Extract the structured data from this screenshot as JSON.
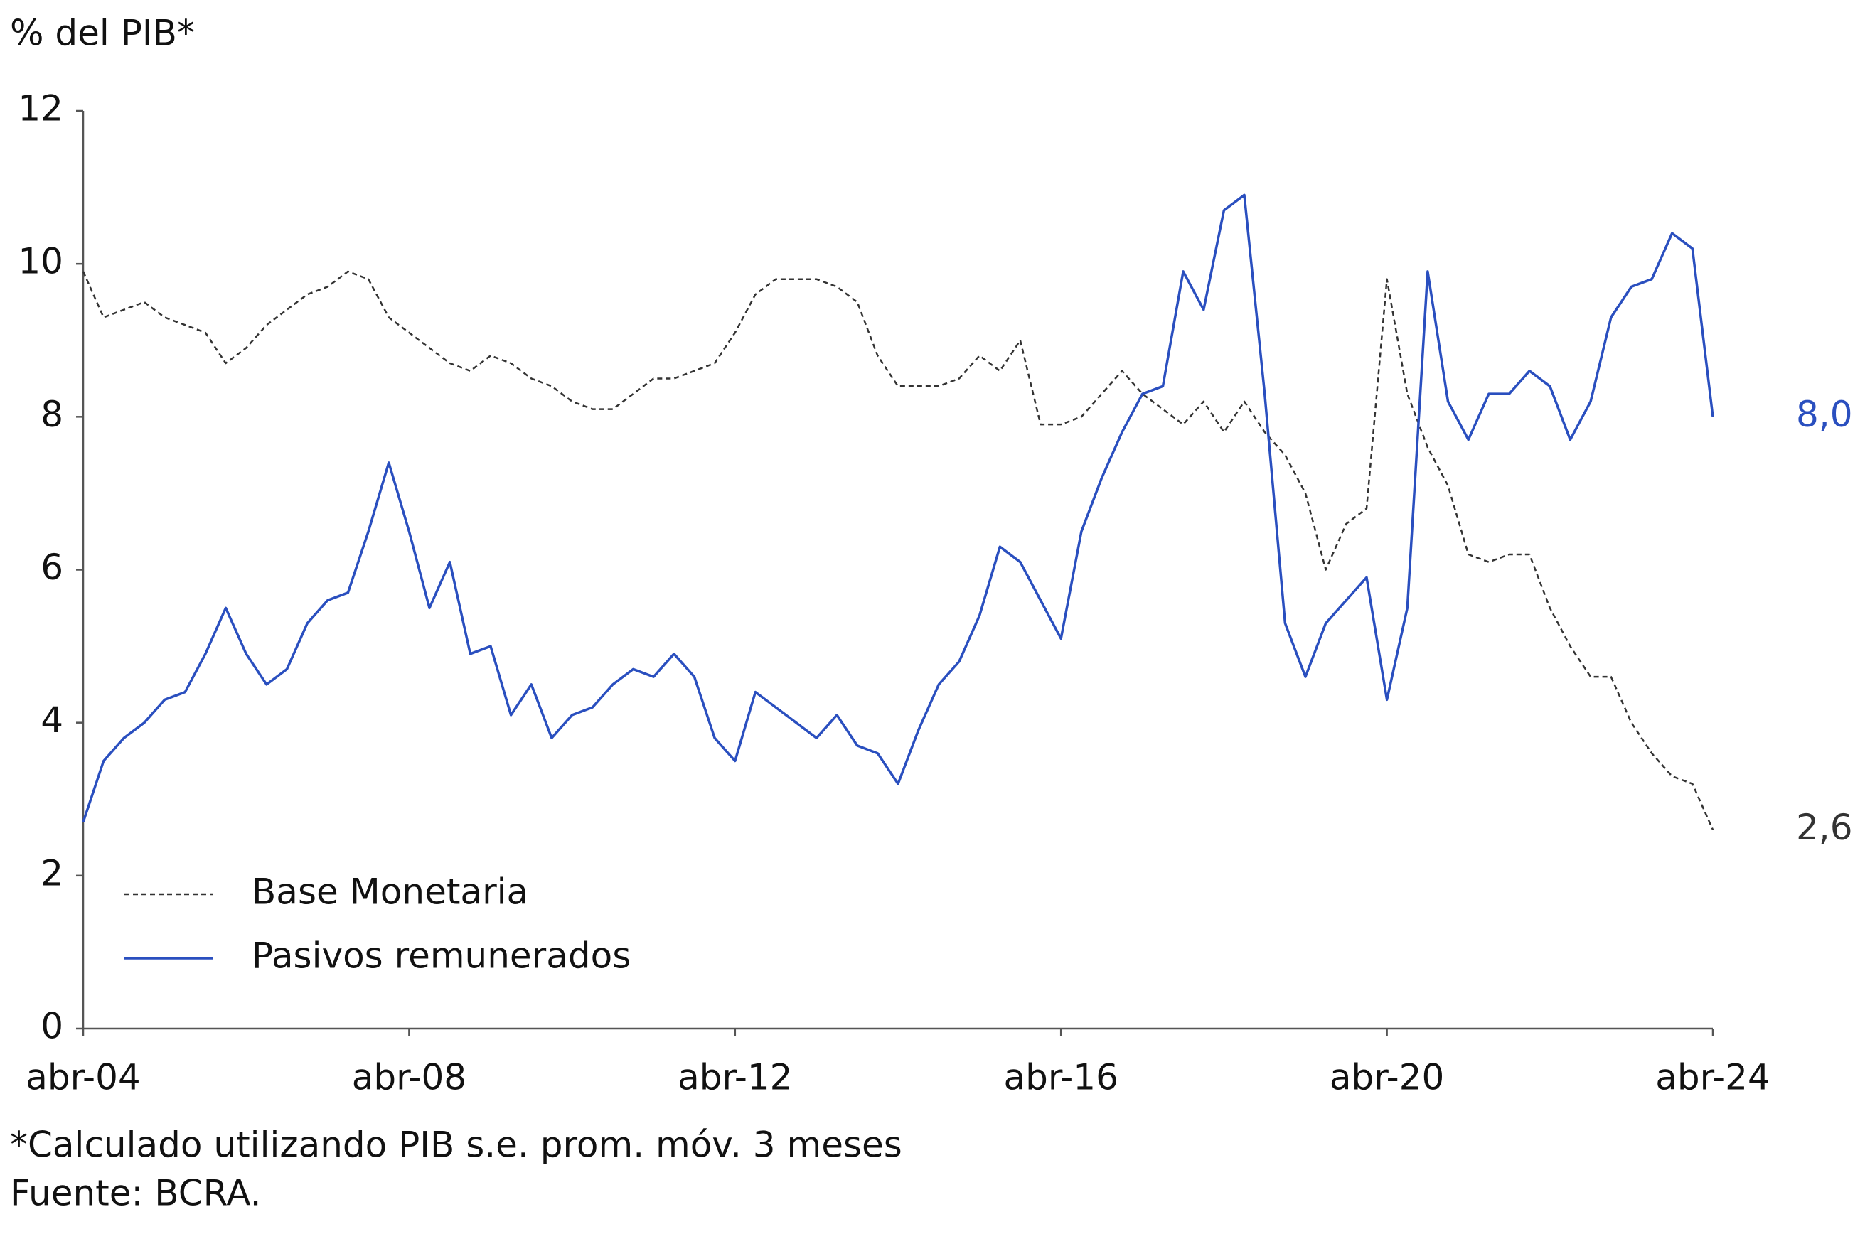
{
  "chart_data": {
    "type": "line",
    "y_label": "% del PIB*",
    "notes": [
      "*Calculado utilizando PIB s.e. prom. móv. 3 meses",
      "Fuente: BCRA."
    ],
    "x": [
      "2004-04",
      "2004-07",
      "2004-10",
      "2005-01",
      "2005-04",
      "2005-07",
      "2005-10",
      "2006-01",
      "2006-04",
      "2006-07",
      "2006-10",
      "2007-01",
      "2007-04",
      "2007-07",
      "2007-10",
      "2008-01",
      "2008-04",
      "2008-07",
      "2008-10",
      "2009-01",
      "2009-04",
      "2009-07",
      "2009-10",
      "2010-01",
      "2010-04",
      "2010-07",
      "2010-10",
      "2011-01",
      "2011-04",
      "2011-07",
      "2011-10",
      "2012-01",
      "2012-04",
      "2012-07",
      "2012-10",
      "2013-01",
      "2013-04",
      "2013-07",
      "2013-10",
      "2014-01",
      "2014-04",
      "2014-07",
      "2014-10",
      "2015-01",
      "2015-04",
      "2015-07",
      "2015-10",
      "2016-01",
      "2016-04",
      "2016-07",
      "2016-10",
      "2017-01",
      "2017-04",
      "2017-07",
      "2017-10",
      "2018-01",
      "2018-04",
      "2018-07",
      "2018-10",
      "2019-01",
      "2019-04",
      "2019-07",
      "2019-10",
      "2020-01",
      "2020-04",
      "2020-07",
      "2020-10",
      "2021-01",
      "2021-04",
      "2021-07",
      "2021-10",
      "2022-01",
      "2022-04",
      "2022-07",
      "2022-10",
      "2023-01",
      "2023-04",
      "2023-07",
      "2023-10",
      "2024-01",
      "2024-04"
    ],
    "xlim": [
      "2004-04",
      "2024-04"
    ],
    "xticks": [
      {
        "value": "2004-04",
        "label": "abr-04"
      },
      {
        "value": "2008-04",
        "label": "abr-08"
      },
      {
        "value": "2012-04",
        "label": "abr-12"
      },
      {
        "value": "2016-04",
        "label": "abr-16"
      },
      {
        "value": "2020-04",
        "label": "abr-20"
      },
      {
        "value": "2024-04",
        "label": "abr-24"
      }
    ],
    "ylim": [
      0,
      12
    ],
    "yticks": [
      0,
      2,
      4,
      6,
      8,
      10,
      12
    ],
    "legend": "lower left",
    "series": [
      {
        "name": "Base Monetaria",
        "color": "#333333",
        "dashed": true,
        "values": [
          9.9,
          9.3,
          9.4,
          9.5,
          9.3,
          9.2,
          9.1,
          8.7,
          8.9,
          9.2,
          9.4,
          9.6,
          9.7,
          9.9,
          9.8,
          9.3,
          9.1,
          8.9,
          8.7,
          8.6,
          8.8,
          8.7,
          8.5,
          8.4,
          8.2,
          8.1,
          8.1,
          8.3,
          8.5,
          8.5,
          8.6,
          8.7,
          9.1,
          9.6,
          9.8,
          9.8,
          9.8,
          9.7,
          9.5,
          8.8,
          8.4,
          8.4,
          8.4,
          8.5,
          8.8,
          8.6,
          9.0,
          7.9,
          7.9,
          8.0,
          8.3,
          8.6,
          8.3,
          8.1,
          7.9,
          8.2,
          7.8,
          8.2,
          7.8,
          7.5,
          7.0,
          6.0,
          6.6,
          6.8,
          9.8,
          8.3,
          7.6,
          7.1,
          6.2,
          6.1,
          6.2,
          6.2,
          5.5,
          5.0,
          4.6,
          4.6,
          4.0,
          3.6,
          3.3,
          3.2,
          2.6
        ],
        "value_labels": [
          null,
          null,
          null,
          null,
          null,
          null,
          null,
          null,
          null,
          null,
          null,
          null,
          null,
          null,
          null,
          null,
          null,
          null,
          null,
          null,
          null,
          null,
          null,
          null,
          null,
          null,
          null,
          null,
          null,
          null,
          null,
          null,
          null,
          null,
          null,
          null,
          null,
          null,
          null,
          null,
          null,
          null,
          null,
          null,
          null,
          null,
          null,
          null,
          null,
          null,
          null,
          null,
          null,
          null,
          null,
          null,
          null,
          null,
          null,
          null,
          null,
          null,
          null,
          null,
          null,
          null,
          null,
          null,
          null,
          null,
          null,
          null,
          null,
          null,
          null,
          null,
          null,
          null,
          null,
          null,
          "2,6"
        ]
      },
      {
        "name": "Pasivos remunerados",
        "color": "#2a4fbf",
        "dashed": false,
        "values": [
          2.7,
          3.5,
          3.8,
          4.0,
          4.3,
          4.4,
          4.9,
          5.5,
          4.9,
          4.5,
          4.7,
          5.3,
          5.6,
          5.7,
          6.5,
          7.4,
          6.5,
          5.5,
          6.1,
          4.9,
          5.0,
          4.1,
          4.5,
          3.8,
          4.1,
          4.2,
          4.5,
          4.7,
          4.6,
          4.9,
          4.6,
          3.8,
          3.5,
          4.4,
          4.2,
          4.0,
          3.8,
          4.1,
          3.7,
          3.6,
          3.2,
          3.9,
          4.5,
          4.8,
          5.4,
          6.3,
          6.1,
          5.6,
          5.1,
          6.5,
          7.2,
          7.8,
          8.3,
          8.4,
          9.9,
          9.4,
          10.7,
          10.9,
          8.3,
          5.3,
          4.6,
          5.3,
          5.6,
          5.9,
          4.3,
          5.5,
          9.9,
          8.2,
          7.7,
          8.3,
          8.3,
          8.6,
          8.4,
          7.7,
          8.2,
          9.3,
          9.7,
          9.8,
          10.4,
          10.2,
          8.0
        ],
        "value_labels": [
          null,
          null,
          null,
          null,
          null,
          null,
          null,
          null,
          null,
          null,
          null,
          null,
          null,
          null,
          null,
          null,
          null,
          null,
          null,
          null,
          null,
          null,
          null,
          null,
          null,
          null,
          null,
          null,
          null,
          null,
          null,
          null,
          null,
          null,
          null,
          null,
          null,
          null,
          null,
          null,
          null,
          null,
          null,
          null,
          null,
          null,
          null,
          null,
          null,
          null,
          null,
          null,
          null,
          null,
          null,
          null,
          null,
          null,
          null,
          null,
          null,
          null,
          null,
          null,
          null,
          null,
          null,
          null,
          null,
          null,
          null,
          null,
          null,
          null,
          null,
          null,
          null,
          null,
          null,
          null,
          "8,0"
        ]
      }
    ]
  }
}
